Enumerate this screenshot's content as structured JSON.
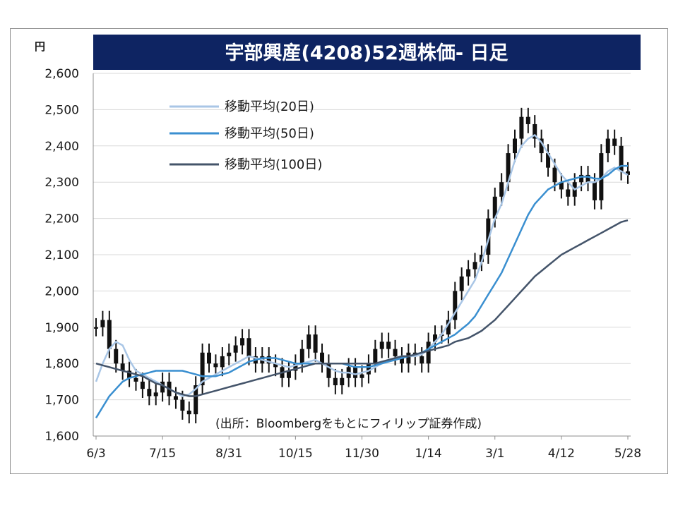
{
  "chart_data": {
    "type": "line",
    "title": "宇部興産(4208)52週株価- 日足",
    "ylabel": "円",
    "ylim": [
      1600,
      2600
    ],
    "yticks": [
      1600,
      1700,
      1800,
      1900,
      2000,
      2100,
      2200,
      2300,
      2400,
      2500,
      2600
    ],
    "yticks_label": [
      "1,600",
      "1,700",
      "1,800",
      "1,900",
      "2,000",
      "2,100",
      "2,200",
      "2,300",
      "2,400",
      "2,500",
      "2,600"
    ],
    "xticks_label": [
      "6/3",
      "7/15",
      "8/31",
      "10/15",
      "11/30",
      "1/14",
      "3/1",
      "4/12",
      "5/28"
    ],
    "xticks_index": [
      0,
      10,
      20,
      30,
      40,
      50,
      60,
      70,
      80
    ],
    "x_count": 81,
    "grid": true,
    "legend_position": "top-left",
    "note": "(出所：Bloombergをもとにフィリップ証券作成)",
    "price": [
      1900,
      1920,
      1840,
      1800,
      1780,
      1760,
      1750,
      1730,
      1710,
      1720,
      1750,
      1710,
      1700,
      1670,
      1660,
      1740,
      1830,
      1800,
      1790,
      1820,
      1830,
      1850,
      1870,
      1820,
      1800,
      1820,
      1800,
      1790,
      1760,
      1780,
      1800,
      1840,
      1880,
      1830,
      1800,
      1760,
      1740,
      1760,
      1790,
      1760,
      1770,
      1800,
      1840,
      1860,
      1840,
      1820,
      1800,
      1830,
      1820,
      1800,
      1860,
      1880,
      1880,
      1920,
      2000,
      2040,
      2060,
      2080,
      2100,
      2200,
      2260,
      2300,
      2380,
      2420,
      2480,
      2460,
      2420,
      2380,
      2340,
      2300,
      2280,
      2260,
      2300,
      2320,
      2300,
      2250,
      2380,
      2420,
      2400,
      2330,
      2320
    ],
    "series": [
      {
        "name": "移動平均(20日)",
        "color": "#a9c6e6",
        "values": [
          1750,
          1800,
          1840,
          1860,
          1850,
          1810,
          1780,
          1770,
          1760,
          1750,
          1740,
          1730,
          1720,
          1710,
          1715,
          1730,
          1750,
          1760,
          1770,
          1780,
          1790,
          1800,
          1810,
          1820,
          1815,
          1810,
          1805,
          1800,
          1795,
          1790,
          1795,
          1800,
          1805,
          1810,
          1800,
          1790,
          1780,
          1775,
          1775,
          1770,
          1775,
          1780,
          1790,
          1800,
          1810,
          1815,
          1820,
          1820,
          1820,
          1825,
          1840,
          1860,
          1880,
          1910,
          1940,
          1970,
          2000,
          2030,
          2080,
          2140,
          2200,
          2240,
          2300,
          2360,
          2400,
          2420,
          2430,
          2410,
          2380,
          2350,
          2320,
          2300,
          2280,
          2290,
          2300,
          2300,
          2310,
          2330,
          2340,
          2330,
          2320
        ]
      },
      {
        "name": "移動平均(50日)",
        "color": "#3a8fd0",
        "values": [
          1650,
          1680,
          1710,
          1730,
          1750,
          1760,
          1765,
          1770,
          1775,
          1780,
          1780,
          1780,
          1780,
          1780,
          1775,
          1770,
          1765,
          1765,
          1765,
          1770,
          1775,
          1785,
          1795,
          1805,
          1810,
          1815,
          1815,
          1815,
          1810,
          1805,
          1800,
          1800,
          1800,
          1800,
          1800,
          1800,
          1800,
          1800,
          1795,
          1790,
          1790,
          1790,
          1795,
          1800,
          1805,
          1810,
          1815,
          1820,
          1825,
          1830,
          1840,
          1850,
          1860,
          1870,
          1880,
          1895,
          1910,
          1930,
          1960,
          1990,
          2020,
          2050,
          2090,
          2130,
          2170,
          2210,
          2240,
          2260,
          2280,
          2290,
          2300,
          2305,
          2310,
          2315,
          2315,
          2310,
          2310,
          2320,
          2335,
          2345,
          2345
        ]
      },
      {
        "name": "移動平均(100日)",
        "color": "#44546a",
        "values": [
          1800,
          1795,
          1790,
          1785,
          1780,
          1775,
          1770,
          1765,
          1755,
          1745,
          1740,
          1730,
          1720,
          1715,
          1710,
          1710,
          1715,
          1720,
          1725,
          1730,
          1735,
          1740,
          1745,
          1750,
          1755,
          1760,
          1765,
          1770,
          1775,
          1780,
          1785,
          1790,
          1795,
          1800,
          1800,
          1800,
          1800,
          1800,
          1800,
          1800,
          1800,
          1800,
          1800,
          1805,
          1810,
          1815,
          1820,
          1820,
          1825,
          1830,
          1835,
          1840,
          1845,
          1850,
          1860,
          1865,
          1870,
          1880,
          1890,
          1905,
          1920,
          1940,
          1960,
          1980,
          2000,
          2020,
          2040,
          2055,
          2070,
          2085,
          2100,
          2110,
          2120,
          2130,
          2140,
          2150,
          2160,
          2170,
          2180,
          2190,
          2195
        ]
      }
    ]
  }
}
